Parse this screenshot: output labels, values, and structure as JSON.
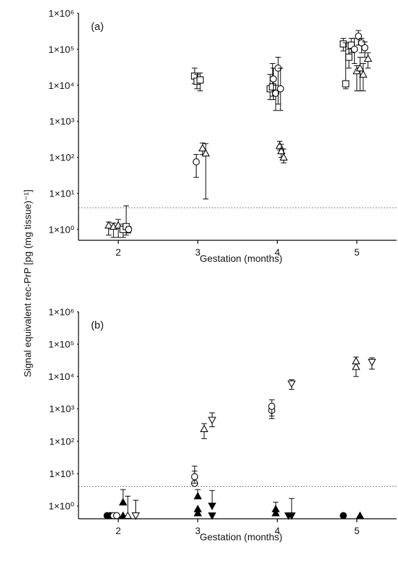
{
  "shared": {
    "ylabel": "Signal equivalent rec-PrP [pg (mg tissue)⁻¹]"
  },
  "chart_data": [
    {
      "type": "scatter",
      "panel_label": "(a)",
      "xlabel": "Gestation (months)",
      "ylabel": "Signal equivalent rec-PrP [pg (mg tissue)⁻¹]",
      "x_ticks": [
        2,
        3,
        4,
        5
      ],
      "xlim": [
        1.5,
        5.5
      ],
      "yscale": "log",
      "ylim": [
        0.5,
        1000000
      ],
      "y_ticks": [
        1,
        10,
        100,
        1000,
        10000,
        100000,
        1000000
      ],
      "y_tick_labels": [
        "1×10⁰",
        "1×10¹",
        "1×10²",
        "1×10³",
        "1×10⁴",
        "1×10⁵",
        "1×10⁶"
      ],
      "threshold": 4,
      "series": [
        {
          "marker": "open-triangle-up",
          "points": [
            {
              "x": 1.88,
              "y": 1.3,
              "lo": 0.7,
              "hi": 1.6
            },
            {
              "x": 1.94,
              "y": 1.2,
              "lo": 0.6,
              "hi": 1.5
            },
            {
              "x": 2.0,
              "y": 1.3,
              "lo": 0.6,
              "hi": 1.9
            },
            {
              "x": 3.06,
              "y": 180,
              "lo": 120,
              "hi": 250
            },
            {
              "x": 3.1,
              "y": 130,
              "lo": 7,
              "hi": 240
            },
            {
              "x": 4.03,
              "y": 210,
              "lo": 160,
              "hi": 280
            },
            {
              "x": 4.05,
              "y": 150,
              "lo": 100,
              "hi": 230
            },
            {
              "x": 4.08,
              "y": 100,
              "lo": 70,
              "hi": 170
            },
            {
              "x": 5.0,
              "y": 25000,
              "lo": 7000,
              "hi": 35000
            },
            {
              "x": 5.04,
              "y": 30000,
              "lo": 7000,
              "hi": 60000
            },
            {
              "x": 5.08,
              "y": 20000,
              "lo": 7000,
              "hi": 40000
            },
            {
              "x": 5.14,
              "y": 55000,
              "lo": 30000,
              "hi": 80000
            }
          ]
        },
        {
          "marker": "open-square",
          "points": [
            {
              "x": 2.06,
              "y": 1.0,
              "lo": 0.6,
              "hi": 1.4
            },
            {
              "x": 2.1,
              "y": 1.2,
              "lo": 0.7,
              "hi": 4.5
            },
            {
              "x": 2.96,
              "y": 18000,
              "lo": 11000,
              "hi": 30000
            },
            {
              "x": 2.99,
              "y": 13000,
              "lo": 8000,
              "hi": 20000
            },
            {
              "x": 3.03,
              "y": 14000,
              "lo": 7000,
              "hi": 22000
            },
            {
              "x": 3.91,
              "y": 8000,
              "lo": 4000,
              "hi": 20000
            },
            {
              "x": 3.94,
              "y": 9000,
              "lo": 5000,
              "hi": 40000
            },
            {
              "x": 4.83,
              "y": 140000,
              "lo": 90000,
              "hi": 200000
            },
            {
              "x": 4.86,
              "y": 11000,
              "lo": 8000,
              "hi": 150000
            },
            {
              "x": 4.9,
              "y": 60000,
              "lo": 30000,
              "hi": 100000
            },
            {
              "x": 4.93,
              "y": 130000,
              "lo": 80000,
              "hi": 200000
            }
          ]
        },
        {
          "marker": "open-circle",
          "points": [
            {
              "x": 2.13,
              "y": 1.0,
              "lo": 0.8,
              "hi": 1.2
            },
            {
              "x": 2.98,
              "y": 75,
              "lo": 28,
              "hi": 120
            },
            {
              "x": 3.95,
              "y": 15000,
              "lo": 4000,
              "hi": 30000
            },
            {
              "x": 3.98,
              "y": 6000,
              "lo": 2000,
              "hi": 10000
            },
            {
              "x": 4.01,
              "y": 30000,
              "lo": 3000,
              "hi": 60000
            },
            {
              "x": 4.04,
              "y": 8000,
              "lo": 2000,
              "hi": 30000
            },
            {
              "x": 4.97,
              "y": 100000,
              "lo": 40000,
              "hi": 200000
            },
            {
              "x": 5.02,
              "y": 230000,
              "lo": 130000,
              "hi": 330000
            },
            {
              "x": 5.06,
              "y": 150000,
              "lo": 80000,
              "hi": 200000
            },
            {
              "x": 5.1,
              "y": 110000,
              "lo": 60000,
              "hi": 160000
            }
          ]
        }
      ]
    },
    {
      "type": "scatter",
      "panel_label": "(b)",
      "xlabel": "Gestation (months)",
      "ylabel": "Signal equivalent rec-PrP [pg (mg tissue)⁻¹]",
      "x_ticks": [
        2,
        3,
        4,
        5
      ],
      "xlim": [
        1.5,
        5.5
      ],
      "yscale": "log",
      "ylim": [
        0.4,
        1000000
      ],
      "y_ticks": [
        1,
        10,
        100,
        1000,
        10000,
        100000,
        1000000
      ],
      "y_tick_labels": [
        "1×10⁰",
        "1×10¹",
        "1×10²",
        "1×10³",
        "1×10⁴",
        "1×10⁵",
        "1×10⁶"
      ],
      "threshold": 4,
      "series": [
        {
          "marker": "filled-circle",
          "points": [
            {
              "x": 1.86,
              "y": 0.5
            },
            {
              "x": 1.9,
              "y": 0.5
            },
            {
              "x": 4.83,
              "y": 0.5
            }
          ]
        },
        {
          "marker": "open-circle",
          "points": [
            {
              "x": 1.94,
              "y": 0.5
            },
            {
              "x": 1.98,
              "y": 0.5
            },
            {
              "x": 2.96,
              "y": 5,
              "hi": 17
            },
            {
              "x": 2.96,
              "y": 8,
              "lo": 5,
              "hi": 12
            },
            {
              "x": 3.93,
              "y": 900,
              "lo": 500,
              "hi": 1300
            },
            {
              "x": 3.93,
              "y": 1200,
              "lo": 600,
              "hi": 1900
            }
          ]
        },
        {
          "marker": "filled-triangle-up",
          "points": [
            {
              "x": 2.06,
              "y": 0.5
            },
            {
              "x": 2.06,
              "y": 1.3,
              "hi": 3.2
            },
            {
              "x": 3.0,
              "y": 0.6
            },
            {
              "x": 3.0,
              "y": 0.8
            },
            {
              "x": 3.0,
              "y": 2.0,
              "hi": 3.2
            },
            {
              "x": 3.98,
              "y": 0.6
            },
            {
              "x": 3.98,
              "y": 0.8,
              "hi": 1.3
            },
            {
              "x": 5.04,
              "y": 0.5
            }
          ]
        },
        {
          "marker": "open-triangle-up",
          "points": [
            {
              "x": 2.12,
              "y": 0.5,
              "hi": 2.0
            },
            {
              "x": 3.08,
              "y": 240,
              "lo": 120,
              "hi": 350
            },
            {
              "x": 4.99,
              "y": 20000,
              "lo": 10000,
              "hi": 28000
            },
            {
              "x": 4.99,
              "y": 30000,
              "hi": 40000
            }
          ]
        },
        {
          "marker": "open-triangle-down",
          "points": [
            {
              "x": 2.22,
              "y": 0.5,
              "hi": 1.5
            },
            {
              "x": 3.18,
              "y": 450,
              "lo": 280,
              "hi": 750
            },
            {
              "x": 4.18,
              "y": 6000,
              "lo": 4000,
              "hi": 8000
            },
            {
              "x": 5.19,
              "y": 28000,
              "lo": 17000,
              "hi": 38000
            }
          ]
        },
        {
          "marker": "filled-triangle-down",
          "points": [
            {
              "x": 3.18,
              "y": 0.5
            },
            {
              "x": 3.18,
              "y": 1.0,
              "hi": 3.0
            },
            {
              "x": 4.14,
              "y": 0.5
            },
            {
              "x": 4.18,
              "y": 0.5,
              "hi": 1.7
            }
          ]
        }
      ]
    }
  ]
}
